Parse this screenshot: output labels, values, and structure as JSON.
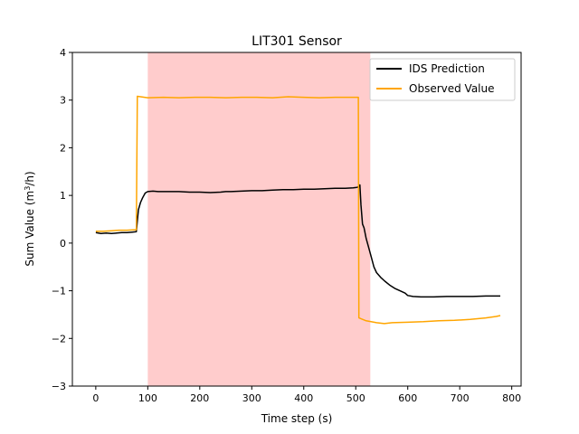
{
  "chart_data": {
    "type": "line",
    "title": "LIT301 Sensor",
    "xlabel": "Time step (s)",
    "ylabel_prefix": "Sum Value (m",
    "ylabel_sup": "3",
    "ylabel_suffix": "/h)",
    "xlim": [
      -45,
      818
    ],
    "ylim": [
      -3,
      4
    ],
    "xticks": [
      0,
      100,
      200,
      300,
      400,
      500,
      600,
      700,
      800
    ],
    "yticks": [
      -3,
      -2,
      -1,
      0,
      1,
      2,
      3,
      4
    ],
    "shaded_region": {
      "x_start": 100,
      "x_end": 528,
      "color": "#ffcccc"
    },
    "legend_position": "upper right",
    "series": [
      {
        "name": "IDS Prediction",
        "color": "#000000",
        "points": [
          [
            0,
            0.22
          ],
          [
            10,
            0.2
          ],
          [
            20,
            0.21
          ],
          [
            30,
            0.2
          ],
          [
            40,
            0.21
          ],
          [
            50,
            0.22
          ],
          [
            60,
            0.22
          ],
          [
            70,
            0.23
          ],
          [
            78,
            0.24
          ],
          [
            82,
            0.7
          ],
          [
            86,
            0.85
          ],
          [
            90,
            0.95
          ],
          [
            95,
            1.05
          ],
          [
            100,
            1.08
          ],
          [
            110,
            1.09
          ],
          [
            120,
            1.08
          ],
          [
            140,
            1.08
          ],
          [
            160,
            1.08
          ],
          [
            180,
            1.07
          ],
          [
            200,
            1.07
          ],
          [
            220,
            1.06
          ],
          [
            240,
            1.07
          ],
          [
            250,
            1.08
          ],
          [
            260,
            1.08
          ],
          [
            280,
            1.09
          ],
          [
            300,
            1.1
          ],
          [
            320,
            1.1
          ],
          [
            340,
            1.11
          ],
          [
            360,
            1.12
          ],
          [
            380,
            1.12
          ],
          [
            400,
            1.13
          ],
          [
            420,
            1.13
          ],
          [
            440,
            1.14
          ],
          [
            460,
            1.15
          ],
          [
            480,
            1.15
          ],
          [
            495,
            1.16
          ],
          [
            502,
            1.17
          ],
          [
            506,
            1.18
          ],
          [
            508,
            1.22
          ],
          [
            510,
            0.8
          ],
          [
            513,
            0.4
          ],
          [
            516,
            0.32
          ],
          [
            520,
            0.1
          ],
          [
            525,
            -0.1
          ],
          [
            530,
            -0.3
          ],
          [
            535,
            -0.5
          ],
          [
            540,
            -0.62
          ],
          [
            548,
            -0.72
          ],
          [
            556,
            -0.8
          ],
          [
            565,
            -0.88
          ],
          [
            575,
            -0.95
          ],
          [
            585,
            -1.0
          ],
          [
            595,
            -1.05
          ],
          [
            600,
            -1.1
          ],
          [
            610,
            -1.12
          ],
          [
            625,
            -1.13
          ],
          [
            650,
            -1.13
          ],
          [
            675,
            -1.12
          ],
          [
            700,
            -1.12
          ],
          [
            725,
            -1.12
          ],
          [
            750,
            -1.11
          ],
          [
            770,
            -1.11
          ],
          [
            778,
            -1.11
          ]
        ]
      },
      {
        "name": "Observed Value",
        "color": "#ffa500",
        "points": [
          [
            0,
            0.25
          ],
          [
            15,
            0.25
          ],
          [
            30,
            0.26
          ],
          [
            45,
            0.27
          ],
          [
            60,
            0.27
          ],
          [
            75,
            0.28
          ],
          [
            78,
            0.28
          ],
          [
            80,
            3.08
          ],
          [
            100,
            3.05
          ],
          [
            130,
            3.06
          ],
          [
            160,
            3.05
          ],
          [
            190,
            3.06
          ],
          [
            220,
            3.06
          ],
          [
            250,
            3.05
          ],
          [
            280,
            3.06
          ],
          [
            310,
            3.06
          ],
          [
            340,
            3.05
          ],
          [
            370,
            3.07
          ],
          [
            400,
            3.06
          ],
          [
            430,
            3.05
          ],
          [
            460,
            3.06
          ],
          [
            480,
            3.06
          ],
          [
            505,
            3.06
          ],
          [
            506,
            -1.57
          ],
          [
            520,
            -1.63
          ],
          [
            540,
            -1.67
          ],
          [
            555,
            -1.69
          ],
          [
            570,
            -1.67
          ],
          [
            600,
            -1.66
          ],
          [
            630,
            -1.65
          ],
          [
            660,
            -1.63
          ],
          [
            690,
            -1.62
          ],
          [
            720,
            -1.6
          ],
          [
            750,
            -1.57
          ],
          [
            770,
            -1.54
          ],
          [
            778,
            -1.52
          ]
        ]
      }
    ]
  }
}
